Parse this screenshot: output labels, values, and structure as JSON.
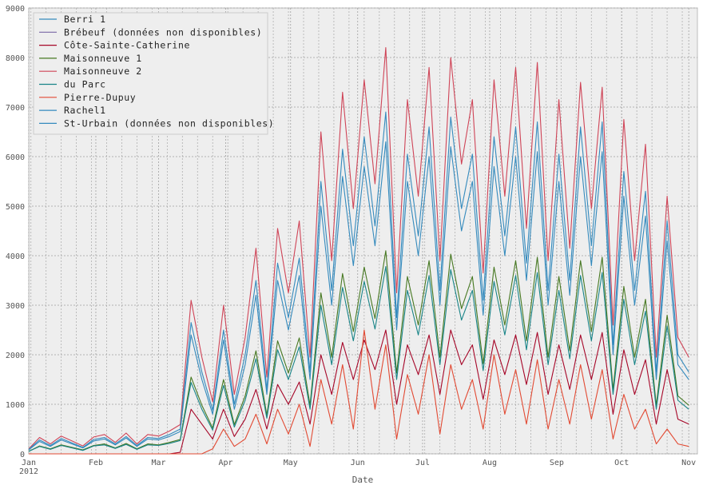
{
  "chart_data": {
    "type": "line",
    "title": "",
    "xlabel": "Date",
    "ylabel": "",
    "ylim": [
      0,
      9000
    ],
    "yticks": [
      "0",
      "1000",
      "2000",
      "3000",
      "4000",
      "5000",
      "6000",
      "7000",
      "8000",
      "9000"
    ],
    "xticks": [
      {
        "label": "Jan",
        "sublabel": "2012",
        "day": 0
      },
      {
        "label": "Feb",
        "day": 31
      },
      {
        "label": "Mar",
        "day": 60
      },
      {
        "label": "Apr",
        "day": 91
      },
      {
        "label": "May",
        "day": 121
      },
      {
        "label": "Jun",
        "day": 152
      },
      {
        "label": "Jul",
        "day": 182
      },
      {
        "label": "Aug",
        "day": 213
      },
      {
        "label": "Sep",
        "day": 244
      },
      {
        "label": "Oct",
        "day": 274
      },
      {
        "label": "Nov",
        "day": 305
      }
    ],
    "x_start": "2012-01-01",
    "x_step_days": 5,
    "xlim_days": [
      0,
      309
    ],
    "grid": true,
    "legend_position": "top-left",
    "series": [
      {
        "name": "Berri 1",
        "color": "#348ABD",
        "values": [
          80,
          250,
          150,
          280,
          200,
          120,
          260,
          300,
          180,
          320,
          150,
          300,
          280,
          350,
          450,
          2400,
          1500,
          800,
          2300,
          900,
          1800,
          3200,
          1200,
          3500,
          2500,
          3600,
          1500,
          5000,
          3000,
          5600,
          3800,
          5800,
          4200,
          6300,
          2500,
          5500,
          4000,
          6000,
          3000,
          6200,
          4500,
          5500,
          2800,
          5800,
          4000,
          6000,
          3500,
          6100,
          3000,
          5500,
          3200,
          6000,
          3800,
          6100,
          2000,
          5200,
          3000,
          4800,
          1500,
          4300,
          1800,
          1500
        ]
      },
      {
        "name": "Brébeuf (données non disponibles)",
        "color": "#7A68A6",
        "values": []
      },
      {
        "name": "Côte-Sainte-Catherine",
        "color": "#A60628",
        "values": [
          0,
          0,
          0,
          0,
          0,
          0,
          0,
          0,
          0,
          0,
          0,
          0,
          0,
          0,
          30,
          900,
          600,
          300,
          900,
          350,
          700,
          1300,
          500,
          1400,
          1000,
          1450,
          600,
          2000,
          1200,
          2250,
          1500,
          2300,
          1700,
          2500,
          1000,
          2200,
          1600,
          2400,
          1200,
          2500,
          1800,
          2200,
          1100,
          2300,
          1600,
          2400,
          1400,
          2450,
          1200,
          2200,
          1300,
          2400,
          1500,
          2450,
          800,
          2100,
          1200,
          1900,
          600,
          1700,
          700,
          600
        ]
      },
      {
        "name": "Maisonneuve 1",
        "color": "#467821",
        "values": [
          50,
          160,
          100,
          180,
          130,
          80,
          170,
          200,
          120,
          210,
          100,
          200,
          180,
          230,
          290,
          1550,
          980,
          520,
          1500,
          590,
          1170,
          2080,
          780,
          2280,
          1630,
          2340,
          980,
          3250,
          1950,
          3640,
          2470,
          3770,
          2730,
          4100,
          1630,
          3580,
          2600,
          3900,
          1950,
          4030,
          2930,
          3580,
          1820,
          3770,
          2600,
          3900,
          2280,
          3970,
          1950,
          3580,
          2080,
          3900,
          2470,
          3970,
          1300,
          3380,
          1950,
          3120,
          980,
          2800,
          1170,
          980
        ]
      },
      {
        "name": "Maisonneuve 2",
        "color": "#CF4457",
        "values": [
          100,
          330,
          200,
          360,
          260,
          160,
          340,
          390,
          230,
          420,
          200,
          390,
          360,
          460,
          590,
          3100,
          1950,
          1050,
          3000,
          1200,
          2350,
          4150,
          1550,
          4550,
          3250,
          4700,
          1950,
          6500,
          3900,
          7300,
          4950,
          7550,
          5450,
          8200,
          3250,
          7150,
          5200,
          7800,
          3900,
          8000,
          5850,
          7150,
          3650,
          7550,
          5200,
          7800,
          4550,
          7900,
          3900,
          7150,
          4150,
          7500,
          4950,
          7400,
          2600,
          6750,
          3900,
          6250,
          1950,
          5200,
          2350,
          1950
        ]
      },
      {
        "name": "du Parc",
        "color": "#188487",
        "values": [
          50,
          150,
          90,
          170,
          120,
          70,
          160,
          180,
          110,
          190,
          90,
          180,
          170,
          210,
          270,
          1440,
          900,
          480,
          1380,
          540,
          1080,
          1920,
          720,
          2100,
          1500,
          2160,
          900,
          3000,
          1800,
          3360,
          2280,
          3480,
          2520,
          3780,
          1500,
          3300,
          2400,
          3600,
          1800,
          3720,
          2700,
          3300,
          1680,
          3480,
          2400,
          3600,
          2100,
          3660,
          1800,
          3300,
          1920,
          3600,
          2280,
          3660,
          1200,
          3120,
          1800,
          2880,
          900,
          2580,
          1080,
          900
        ]
      },
      {
        "name": "Pierre-Dupuy",
        "color": "#E24A33",
        "values": [
          0,
          0,
          0,
          0,
          0,
          0,
          0,
          0,
          0,
          0,
          0,
          0,
          0,
          0,
          0,
          0,
          0,
          100,
          500,
          150,
          300,
          800,
          200,
          900,
          400,
          1000,
          150,
          1500,
          600,
          1800,
          500,
          2500,
          900,
          2200,
          300,
          1600,
          800,
          2000,
          400,
          1800,
          900,
          1500,
          500,
          2000,
          800,
          1700,
          600,
          1900,
          500,
          1500,
          600,
          1800,
          700,
          1700,
          300,
          1200,
          500,
          900,
          200,
          500,
          200,
          150
        ]
      },
      {
        "name": "Rachel1",
        "color": "#348ABD",
        "values": [
          90,
          280,
          170,
          310,
          220,
          130,
          290,
          330,
          200,
          350,
          170,
          330,
          310,
          390,
          500,
          2650,
          1650,
          880,
          2500,
          1000,
          2000,
          3500,
          1300,
          3850,
          2750,
          3950,
          1650,
          5500,
          3300,
          6150,
          4200,
          6400,
          4600,
          6900,
          2750,
          6050,
          4400,
          6600,
          3300,
          6800,
          4950,
          6050,
          3100,
          6400,
          4400,
          6600,
          3850,
          6700,
          3300,
          6050,
          3500,
          6600,
          4200,
          6700,
          2200,
          5700,
          3300,
          5300,
          1650,
          4700,
          2000,
          1650
        ]
      },
      {
        "name": "St-Urbain (données non disponibles)",
        "color": "#348ABD",
        "values": []
      }
    ]
  }
}
